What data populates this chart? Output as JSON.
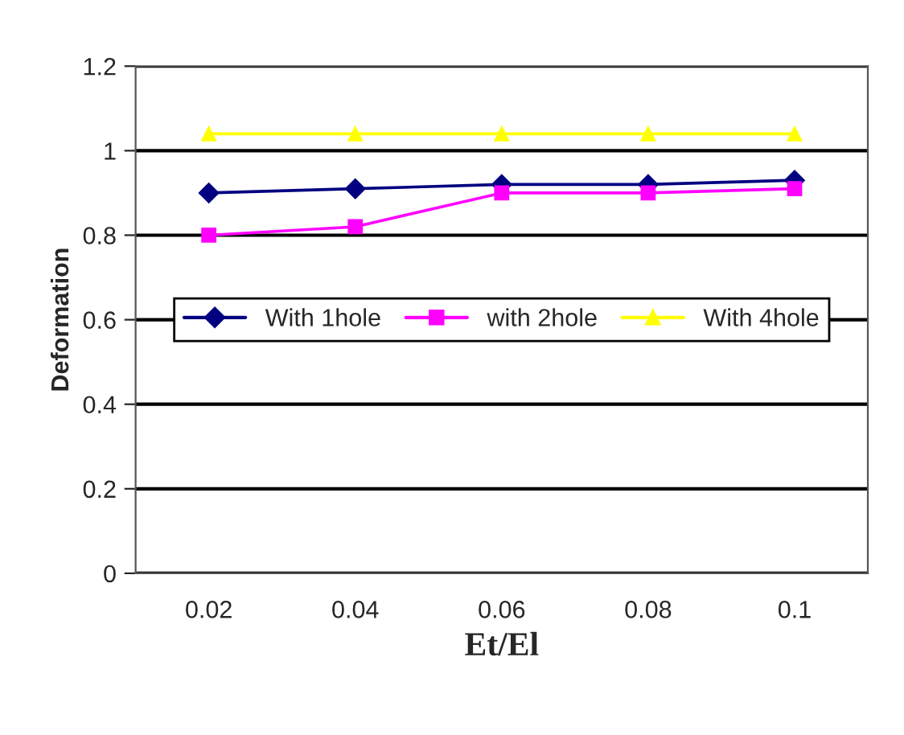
{
  "chart_data": {
    "type": "line",
    "xlabel": "Et/El",
    "ylabel": "Deformation",
    "categories": [
      "0.02",
      "0.04",
      "0.06",
      "0.08",
      "0.1"
    ],
    "series": [
      {
        "name": "With 1hole",
        "color": "#000080",
        "marker": "diamond",
        "values": [
          0.9,
          0.91,
          0.92,
          0.92,
          0.93
        ]
      },
      {
        "name": "with 2hole",
        "color": "#ff00ff",
        "marker": "square",
        "values": [
          0.8,
          0.82,
          0.9,
          0.9,
          0.91
        ]
      },
      {
        "name": "With 4hole",
        "color": "#ffff00",
        "marker": "triangle",
        "values": [
          1.04,
          1.04,
          1.04,
          1.04,
          1.04
        ]
      }
    ],
    "ylim": [
      0,
      1.2
    ],
    "yticks": [
      0,
      0.2,
      0.4,
      0.6,
      0.8,
      1,
      1.2
    ],
    "grid": "y",
    "legend": "center",
    "line_style": "solid"
  }
}
